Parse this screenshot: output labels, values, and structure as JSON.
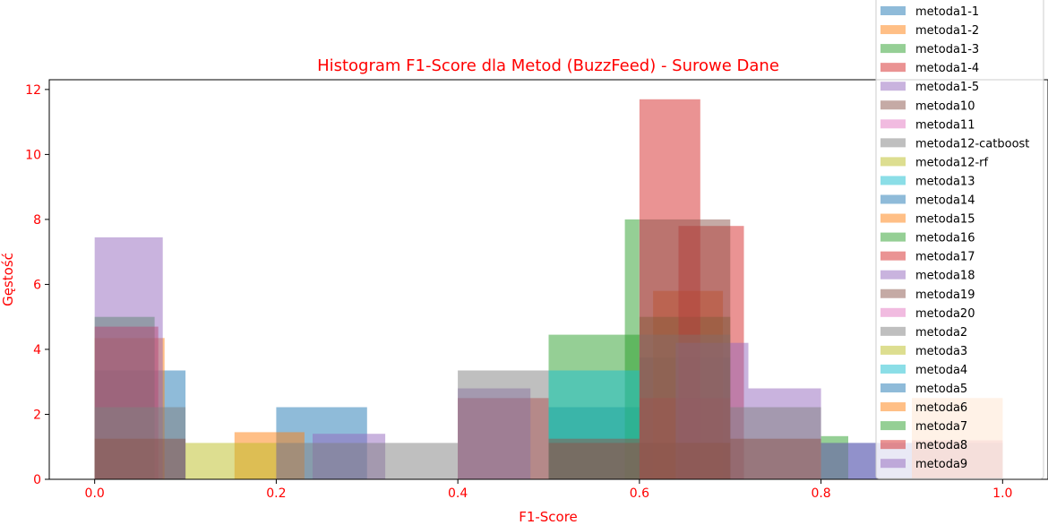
{
  "chart_data": {
    "type": "histogram",
    "title": "Histogram F1-Score dla Metod (BuzzFeed) - Surowe Dane",
    "xlabel": "F1-Score",
    "ylabel": "Gęstość",
    "xlim": [
      -0.05,
      1.05
    ],
    "ylim": [
      0,
      12.3
    ],
    "xticks": [
      "0.0",
      "0.2",
      "0.4",
      "0.6",
      "0.8",
      "1.0"
    ],
    "yticks": [
      "0",
      "2",
      "4",
      "6",
      "8",
      "10",
      "12"
    ],
    "text_color": "#ff0000",
    "legend_position": "upper right",
    "legend": [
      {
        "name": "metoda1-1",
        "color": "#1f77b4"
      },
      {
        "name": "metoda1-2",
        "color": "#ff7f0e"
      },
      {
        "name": "metoda1-3",
        "color": "#2ca02c"
      },
      {
        "name": "metoda1-4",
        "color": "#d62728"
      },
      {
        "name": "metoda1-5",
        "color": "#9467bd"
      },
      {
        "name": "metoda10",
        "color": "#8c564b"
      },
      {
        "name": "metoda11",
        "color": "#e377c2"
      },
      {
        "name": "metoda12-catboost",
        "color": "#7f7f7f"
      },
      {
        "name": "metoda12-rf",
        "color": "#bcbd22"
      },
      {
        "name": "metoda13",
        "color": "#17becf"
      },
      {
        "name": "metoda14",
        "color": "#1f77b4"
      },
      {
        "name": "metoda15",
        "color": "#ff7f0e"
      },
      {
        "name": "metoda16",
        "color": "#2ca02c"
      },
      {
        "name": "metoda17",
        "color": "#d62728"
      },
      {
        "name": "metoda18",
        "color": "#9467bd"
      },
      {
        "name": "metoda19",
        "color": "#8c564b"
      },
      {
        "name": "metoda20",
        "color": "#e377c2"
      },
      {
        "name": "metoda2",
        "color": "#7f7f7f"
      },
      {
        "name": "metoda3",
        "color": "#bcbd22"
      },
      {
        "name": "metoda4",
        "color": "#17becf"
      },
      {
        "name": "metoda5",
        "color": "#1f77b4"
      },
      {
        "name": "metoda6",
        "color": "#ff7f0e"
      },
      {
        "name": "metoda7",
        "color": "#2ca02c"
      },
      {
        "name": "metoda8",
        "color": "#d62728"
      },
      {
        "name": "metoda9",
        "color": "#9467bd"
      }
    ],
    "bars": [
      {
        "x0": 0.0,
        "x1": 0.1,
        "h": 3.35,
        "color": "#1f77b4"
      },
      {
        "x0": 0.2,
        "x1": 0.3,
        "h": 2.22,
        "color": "#1f77b4"
      },
      {
        "x0": 0.5,
        "x1": 0.6,
        "h": 2.22,
        "color": "#1f77b4"
      },
      {
        "x0": 0.6,
        "x1": 0.7,
        "h": 3.75,
        "color": "#1f77b4"
      },
      {
        "x0": 0.8,
        "x1": 0.9,
        "h": 1.12,
        "color": "#1f77b4"
      },
      {
        "x0": 0.9,
        "x1": 1.0,
        "h": 1.12,
        "color": "#1f77b4"
      },
      {
        "x0": 0.0,
        "x1": 0.077,
        "h": 4.35,
        "color": "#ff7f0e"
      },
      {
        "x0": 0.154,
        "x1": 0.231,
        "h": 1.45,
        "color": "#ff7f0e"
      },
      {
        "x0": 0.615,
        "x1": 0.692,
        "h": 5.8,
        "color": "#ff7f0e"
      },
      {
        "x0": 0.9,
        "x1": 1.0,
        "h": 2.5,
        "color": "#ff7f0e"
      },
      {
        "x0": 0.0,
        "x1": 0.066,
        "h": 5.0,
        "color": "#2ca02c"
      },
      {
        "x0": 0.5,
        "x1": 0.6,
        "h": 4.45,
        "color": "#2ca02c"
      },
      {
        "x0": 0.6,
        "x1": 0.7,
        "h": 5.0,
        "color": "#2ca02c"
      },
      {
        "x0": 0.8,
        "x1": 0.83,
        "h": 1.33,
        "color": "#2ca02c"
      },
      {
        "x0": 0.584,
        "x1": 0.6,
        "h": 8.0,
        "color": "#2ca02c"
      },
      {
        "x0": 0.0,
        "x1": 0.07,
        "h": 4.7,
        "color": "#d62728"
      },
      {
        "x0": 0.6,
        "x1": 0.667,
        "h": 11.7,
        "color": "#d62728"
      },
      {
        "x0": 0.643,
        "x1": 0.715,
        "h": 7.8,
        "color": "#d62728"
      },
      {
        "x0": 0.4,
        "x1": 0.5,
        "h": 2.5,
        "color": "#d62728"
      },
      {
        "x0": 0.6,
        "x1": 0.7,
        "h": 2.5,
        "color": "#d62728"
      },
      {
        "x0": 0.9,
        "x1": 1.0,
        "h": 1.2,
        "color": "#d62728"
      },
      {
        "x0": 0.0,
        "x1": 0.075,
        "h": 7.45,
        "color": "#9467bd"
      },
      {
        "x0": 0.24,
        "x1": 0.32,
        "h": 1.4,
        "color": "#9467bd"
      },
      {
        "x0": 0.4,
        "x1": 0.48,
        "h": 2.8,
        "color": "#9467bd"
      },
      {
        "x0": 0.64,
        "x1": 0.72,
        "h": 4.2,
        "color": "#9467bd"
      },
      {
        "x0": 0.72,
        "x1": 0.8,
        "h": 2.8,
        "color": "#9467bd"
      },
      {
        "x0": 0.8,
        "x1": 0.9,
        "h": 1.12,
        "color": "#9467bd"
      },
      {
        "x0": 0.0,
        "x1": 0.1,
        "h": 2.22,
        "color": "#7f7f7f"
      },
      {
        "x0": 0.1,
        "x1": 0.2,
        "h": 1.12,
        "color": "#bcbd22"
      },
      {
        "x0": 0.2,
        "x1": 0.3,
        "h": 1.12,
        "color": "#7f7f7f"
      },
      {
        "x0": 0.3,
        "x1": 0.4,
        "h": 1.12,
        "color": "#7f7f7f"
      },
      {
        "x0": 0.4,
        "x1": 0.5,
        "h": 3.35,
        "color": "#7f7f7f"
      },
      {
        "x0": 0.5,
        "x1": 0.6,
        "h": 3.35,
        "color": "#17becf"
      },
      {
        "x0": 0.6,
        "x1": 0.7,
        "h": 4.45,
        "color": "#7f7f7f"
      },
      {
        "x0": 0.7,
        "x1": 0.8,
        "h": 2.22,
        "color": "#7f7f7f"
      },
      {
        "x0": 0.0,
        "x1": 0.1,
        "h": 1.25,
        "color": "#8c564b"
      },
      {
        "x0": 0.5,
        "x1": 0.6,
        "h": 1.25,
        "color": "#8c564b"
      },
      {
        "x0": 0.6,
        "x1": 0.7,
        "h": 8.0,
        "color": "#8c564b"
      },
      {
        "x0": 0.7,
        "x1": 0.8,
        "h": 1.25,
        "color": "#8c564b"
      },
      {
        "x0": 0.5,
        "x1": 0.6,
        "h": 1.12,
        "color": "#8c564b"
      },
      {
        "x0": 0.6,
        "x1": 0.7,
        "h": 1.12,
        "color": "#8c564b"
      }
    ]
  }
}
